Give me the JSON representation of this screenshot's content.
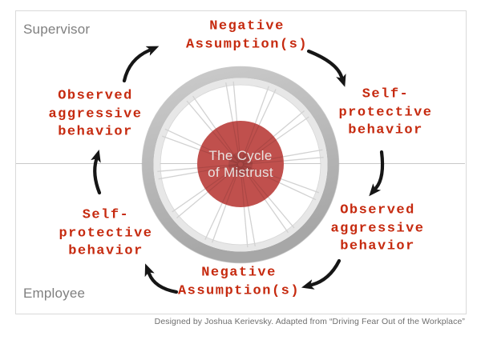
{
  "page": {
    "supervisor_label": "Supervisor",
    "employee_label": "Employee",
    "attribution": "Designed by Joshua Kerievsky. Adapted from “Driving Fear Out of the Workplace”"
  },
  "hub": {
    "title": "The Cycle\nof Mistrust"
  },
  "cycle_labels": {
    "top": "Negative\nAssumption(s)",
    "upper_right": "Self-\nprotective\nbehavior",
    "lower_right": "Observed\naggressive\nbehavior",
    "bottom": "Negative\nAssumption(s)",
    "lower_left": "Self-\nprotective\nbehavior",
    "upper_left": "Observed\naggressive\nbehavior"
  },
  "colors": {
    "label_red": "#c62a0f",
    "hub_red": "#c0504d",
    "hub_center_red": "#aa443f",
    "text_gray": "#7f7f7f",
    "arrow_black": "#161616",
    "rim_gray": "#b3b3b3",
    "divider_gray": "#c8c8c8"
  }
}
